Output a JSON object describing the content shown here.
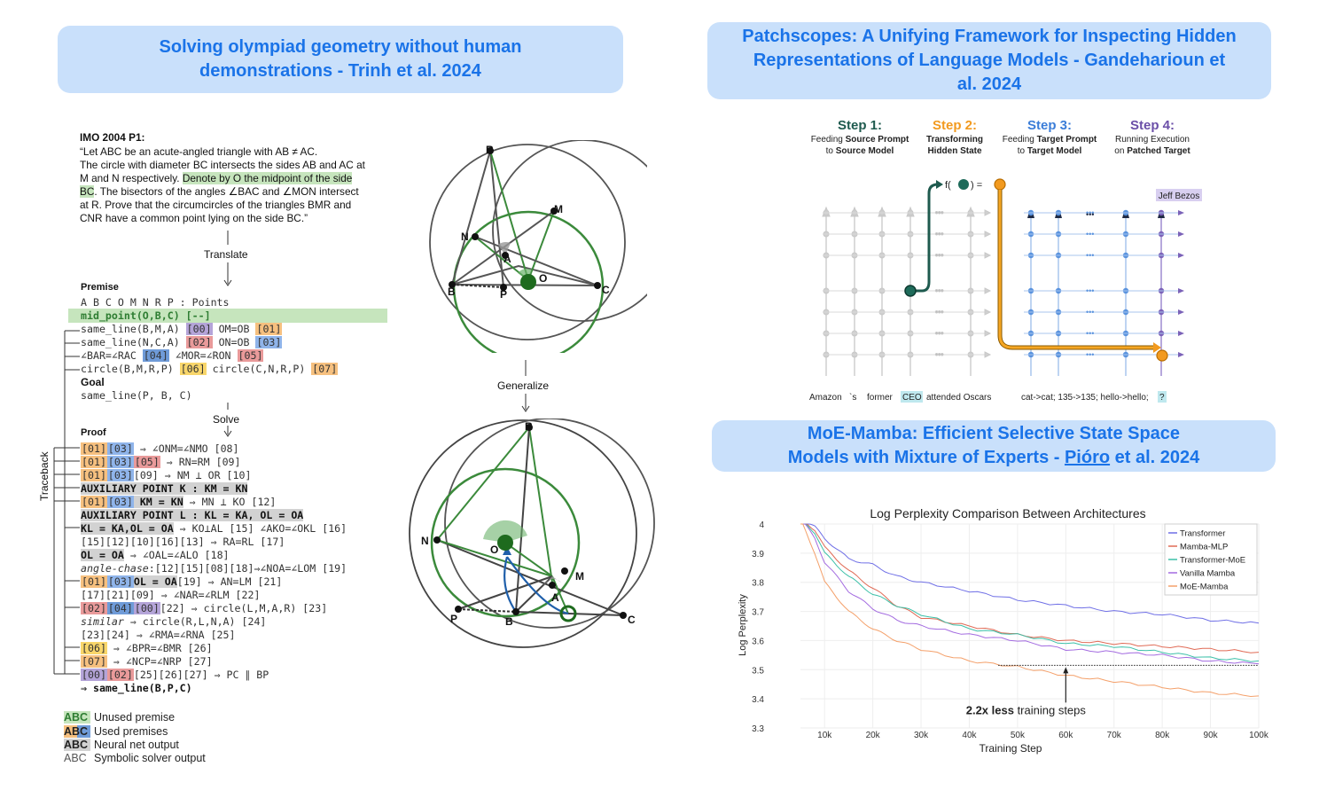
{
  "titles": {
    "t1_line1": "Solving olympiad geometry without human",
    "t1_line2": "demonstrations - Trinh et al. 2024",
    "t2_line1": "Patchscopes: A Unifying Framework for Inspecting Hidden",
    "t2_line2": "Representations of Language Models - Gandeharioun et",
    "t2_line3": "al. 2024",
    "t3_line1": "MoE-Mamba: Efficient Selective State Space",
    "t3_line2a": "Models with Mixture of Experts - ",
    "t3_line2b": "Pióro",
    "t3_line2c": " et al. 2024"
  },
  "geometry": {
    "problem_title": "IMO 2004 P1:",
    "problem_lines": [
      "“Let ABC be an acute-angled triangle with AB ≠ AC.",
      "The circle with diameter BC intersects the sides AB and AC at",
      "M and N respectively.",
      "Denote by O the midpoint of the side",
      "BC",
      ". The bisectors of the angles ∠BAC and ∠MON intersect",
      "at R. Prove that the circumcircles of the triangles BMR and",
      "CNR have a common point lying on the side BC.”"
    ],
    "translate": "Translate",
    "premise": "Premise",
    "points": "A B C O M N R P : Points",
    "mid_point": "mid_point(O,B,C) [--]",
    "prem": {
      "l1a": "same_line(B,M,A)",
      "l1t1": "[00]",
      "l1b": "OM=OB",
      "l1t2": "[01]",
      "l2a": "same_line(N,C,A)",
      "l2t1": "[02]",
      "l2b": "ON=OB",
      "l2t2": "[03]",
      "l3a": "∠BAR=∠RAC",
      "l3t1": "[04]",
      "l3b": "∠MOR=∠RON",
      "l3t2": "[05]",
      "l4a": "circle(B,M,R,P)",
      "l4t1": "[06]",
      "l4b": "circle(C,N,R,P)",
      "l4t2": "[07]"
    },
    "goal": "Goal",
    "goal_expr": "same_line(P, B, C)",
    "solve": "Solve",
    "proof": "Proof",
    "traceback": "Traceback",
    "generalize": "Generalize",
    "proof_lines": {
      "p1t1": "[01]",
      "p1t2": "[03]",
      "p1r": " ⇒ ∠ONM=∠NMO [08]",
      "p2t1": "[01]",
      "p2t2": "[03]",
      "p2t3": "[05]",
      "p2r": " ⇒ RN=RM [09]",
      "p3t1": "[01]",
      "p3t2": "[03]",
      "p3r": "[09] ⇒ NM ⊥ OR [10]",
      "p4": "AUXILIARY POINT K : KM = KN",
      "p5t1": "[01]",
      "p5t2": "[03]",
      "p5m": " KM = KN",
      "p5r": " ⇒ MN ⊥ KO [12]",
      "p6": "AUXILIARY POINT L : KL = KA, OL = OA",
      "p7a": "KL = KA,OL = OA",
      "p7r": " ⇒ KO⊥AL [15] ∠AKO=∠OKL [16]",
      "p8": "[15][12][10][16][13] ⇒ RA=RL [17]",
      "p9a": "OL = OA",
      "p9r": " ⇒ ∠OAL=∠ALO [18]",
      "p10a": "angle-chase",
      "p10r": ":[12][15][08][18]⇒∠NOA=∠LOM [19]",
      "p11t1": "[01]",
      "p11t2": "[03]",
      "p11m": "OL = OA",
      "p11r": "[19] ⇒ AN=LM [21]",
      "p12": "[17][21][09] ⇒ ∠NAR=∠RLM [22]",
      "p13t1": "[02]",
      "p13t2": "[04]",
      "p13t3": "[00]",
      "p13r": "[22] ⇒ circle(L,M,A,R) [23]",
      "p14a": "similar",
      "p14r": " ⇒ circle(R,L,N,A) [24]",
      "p15": "[23][24] ⇒ ∠RMA=∠RNA [25]",
      "p16t1": "[06]",
      "p16r": " ⇒ ∠BPR=∠BMR [26]",
      "p17t1": "[07]",
      "p17r": " ⇒ ∠NCP=∠NRP [27]",
      "p18t1": "[00]",
      "p18t2": "[02]",
      "p18r": "[25][26][27] ⇒ PC ∥ BP",
      "p19": "⇒ same_line(B,P,C)"
    },
    "legend": [
      {
        "sw": "ABC",
        "label": "Unused premise"
      },
      {
        "sw": "ABC",
        "label": "Used premises"
      },
      {
        "sw": "ABC",
        "label": "Neural net output"
      },
      {
        "sw": "ABC",
        "label": "Symbolic solver output"
      }
    ],
    "fig_labels": {
      "R": "R",
      "M": "M",
      "N": "N",
      "A": "A",
      "B": "B",
      "P": "P",
      "O": "O",
      "C": "C"
    }
  },
  "patchscopes": {
    "steps": [
      {
        "title": "Step 1:",
        "l1a": "Feeding ",
        "l1b": "Source Prompt",
        "l2a": "to ",
        "l2b": "Source Model",
        "color": "#1e5a4e"
      },
      {
        "title": "Step 2:",
        "l1a": "",
        "l1b": "Transforming",
        "l2a": "",
        "l2b": "Hidden State",
        "color": "#f29a1f"
      },
      {
        "title": "Step 3:",
        "l1a": "Feeding ",
        "l1b": "Target Prompt",
        "l2a": "to ",
        "l2b": "Target Model",
        "color": "#3b7dd8"
      },
      {
        "title": "Step 4:",
        "l1a": "Running Execution",
        "l1b": "",
        "l2a": "on ",
        "l2b": "Patched Target",
        "color": "#6b4fa8"
      }
    ],
    "func": "f(",
    "func_end": ") =",
    "answer": "Jeff Bezos",
    "source_tokens": [
      "Amazon",
      "`s",
      "former",
      "CEO",
      "attended Oscars"
    ],
    "target_prompt": "cat->cat; 135->135; hello->hello;",
    "target_q": "?"
  },
  "chart_data": {
    "type": "line",
    "title": "Log Perplexity Comparison Between Architectures",
    "xlabel": "Training Step",
    "ylabel": "Log Perplexity",
    "xlim": [
      5000,
      100000
    ],
    "ylim": [
      3.3,
      4.0
    ],
    "xticks": [
      "10k",
      "20k",
      "30k",
      "40k",
      "50k",
      "60k",
      "70k",
      "80k",
      "90k",
      "100k"
    ],
    "yticks": [
      "3.3",
      "3.4",
      "3.5",
      "3.6",
      "3.7",
      "3.8",
      "3.9",
      "4"
    ],
    "legend_position": "top-right",
    "grid": true,
    "series": [
      {
        "name": "Transformer",
        "color": "#6f6fe6",
        "x": [
          5000,
          8000,
          10000,
          15000,
          20000,
          25000,
          30000,
          40000,
          50000,
          60000,
          70000,
          80000,
          90000,
          100000
        ],
        "values": [
          4.02,
          3.99,
          3.95,
          3.88,
          3.86,
          3.82,
          3.8,
          3.77,
          3.74,
          3.72,
          3.7,
          3.69,
          3.67,
          3.66
        ]
      },
      {
        "name": "Mamba-MLP",
        "color": "#e06a55",
        "x": [
          5000,
          8000,
          10000,
          15000,
          20000,
          25000,
          30000,
          40000,
          50000,
          60000,
          70000,
          80000,
          90000,
          100000
        ],
        "values": [
          4.02,
          3.98,
          3.92,
          3.84,
          3.78,
          3.72,
          3.68,
          3.65,
          3.62,
          3.6,
          3.59,
          3.58,
          3.57,
          3.56
        ]
      },
      {
        "name": "Transformer-MoE",
        "color": "#3cc0a8",
        "x": [
          5000,
          8000,
          10000,
          15000,
          20000,
          25000,
          30000,
          40000,
          50000,
          60000,
          70000,
          80000,
          90000,
          100000
        ],
        "values": [
          4.02,
          3.97,
          3.9,
          3.82,
          3.76,
          3.72,
          3.69,
          3.64,
          3.62,
          3.59,
          3.58,
          3.56,
          3.54,
          3.53
        ]
      },
      {
        "name": "Vanilla Mamba",
        "color": "#a36be0",
        "x": [
          5000,
          8000,
          10000,
          15000,
          20000,
          25000,
          30000,
          40000,
          50000,
          60000,
          70000,
          80000,
          90000,
          100000
        ],
        "values": [
          4.02,
          3.95,
          3.87,
          3.77,
          3.71,
          3.67,
          3.65,
          3.62,
          3.6,
          3.57,
          3.56,
          3.55,
          3.53,
          3.52
        ]
      },
      {
        "name": "MoE-Mamba",
        "color": "#f4a06a",
        "x": [
          5000,
          8000,
          10000,
          15000,
          20000,
          25000,
          30000,
          40000,
          50000,
          60000,
          70000,
          80000,
          90000,
          100000
        ],
        "values": [
          4.02,
          3.9,
          3.8,
          3.7,
          3.64,
          3.6,
          3.57,
          3.53,
          3.51,
          3.48,
          3.46,
          3.44,
          3.42,
          3.41
        ]
      }
    ],
    "annotation": {
      "bold": "2.2x less",
      "rest": " training steps",
      "y": 3.515,
      "x_from": 46000,
      "x_to": 100000,
      "arrow_x": 60000
    }
  }
}
